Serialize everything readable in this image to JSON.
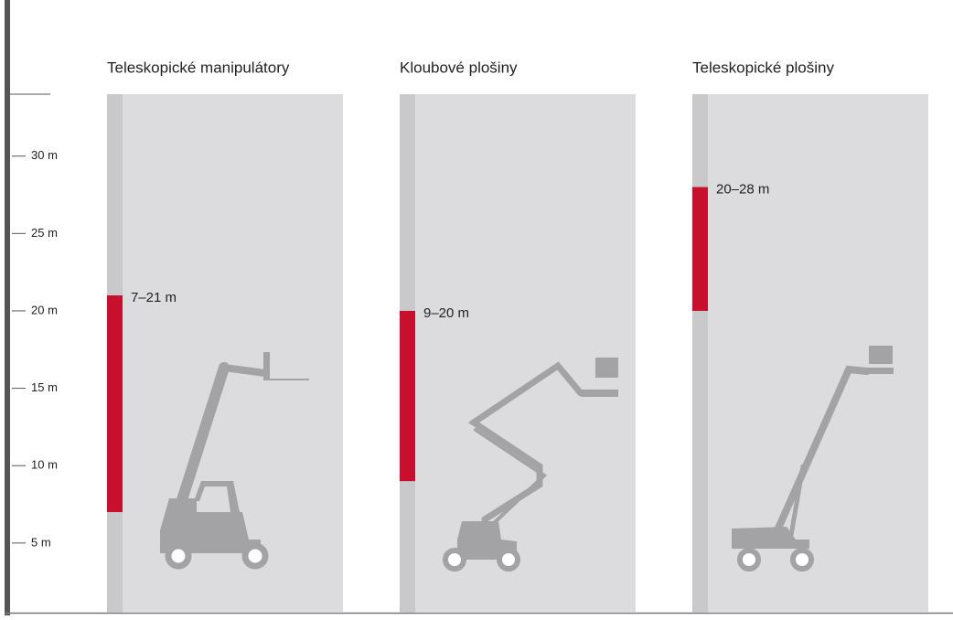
{
  "chart_data": {
    "type": "range",
    "categories": [
      "Teleskopické manipulátory",
      "Kloubové plošiny",
      "Teleskopické plošiny"
    ],
    "low": [
      7,
      9,
      20
    ],
    "high": [
      21,
      20,
      28
    ],
    "value_labels": [
      "7–21 m",
      "9–20 m",
      "20–28 m"
    ],
    "color": "#c8102e",
    "ylim": [
      0.5,
      34
    ],
    "yticks": [
      {
        "value": 5,
        "label": "5 m"
      },
      {
        "value": 10,
        "label": "10 m"
      },
      {
        "value": 15,
        "label": "15 m"
      },
      {
        "value": 20,
        "label": "20 m"
      },
      {
        "value": 25,
        "label": "25 m"
      },
      {
        "value": 30,
        "label": "30 m"
      }
    ]
  }
}
